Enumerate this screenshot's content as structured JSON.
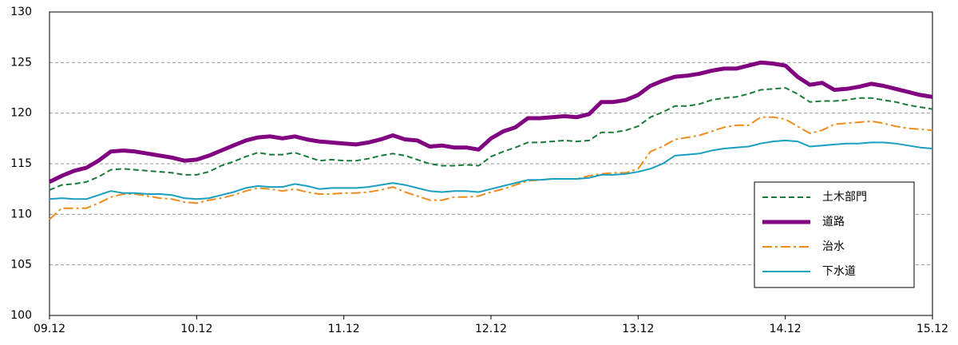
{
  "chart_data": {
    "type": "line",
    "categories": [
      "09.12",
      null,
      null,
      null,
      null,
      null,
      null,
      null,
      null,
      null,
      null,
      null,
      "10.12",
      null,
      null,
      null,
      null,
      null,
      null,
      null,
      null,
      null,
      null,
      null,
      "11.12",
      null,
      null,
      null,
      null,
      null,
      null,
      null,
      null,
      null,
      null,
      null,
      "12.12",
      null,
      null,
      null,
      null,
      null,
      null,
      null,
      null,
      null,
      null,
      null,
      "13.12",
      null,
      null,
      null,
      null,
      null,
      null,
      null,
      null,
      null,
      null,
      null,
      "14.12",
      null,
      null,
      null,
      null,
      null,
      null,
      null,
      null,
      null,
      null,
      null,
      "15.12"
    ],
    "series": [
      {
        "name": "土木部門",
        "color": "#1a7a3a",
        "line_style": "dashed",
        "line_width": 2,
        "values": [
          112.4,
          112.9,
          113.0,
          113.2,
          113.7,
          114.4,
          114.5,
          114.4,
          114.3,
          114.2,
          114.1,
          113.9,
          113.9,
          114.2,
          114.8,
          115.2,
          115.7,
          116.1,
          115.9,
          115.9,
          116.1,
          115.7,
          115.3,
          115.4,
          115.3,
          115.3,
          115.5,
          115.8,
          116.0,
          115.8,
          115.4,
          115.0,
          114.8,
          114.8,
          114.9,
          114.8,
          115.7,
          116.2,
          116.6,
          117.1,
          117.1,
          117.2,
          117.3,
          117.2,
          117.3,
          118.1,
          118.1,
          118.3,
          118.7,
          119.6,
          120.1,
          120.7,
          120.7,
          120.9,
          121.3,
          121.5,
          121.6,
          121.9,
          122.3,
          122.4,
          122.5,
          121.9,
          121.1,
          121.2,
          121.2,
          121.3,
          121.5,
          121.5,
          121.3,
          121.1,
          120.8,
          120.6,
          120.4
        ]
      },
      {
        "name": "道路",
        "color": "#800080",
        "line_style": "solid",
        "line_width": 5,
        "values": [
          113.2,
          113.8,
          114.3,
          114.6,
          115.3,
          116.2,
          116.3,
          116.2,
          116.0,
          115.8,
          115.6,
          115.3,
          115.4,
          115.8,
          116.3,
          116.8,
          117.3,
          117.6,
          117.7,
          117.5,
          117.7,
          117.4,
          117.2,
          117.1,
          117.0,
          116.9,
          117.1,
          117.4,
          117.8,
          117.4,
          117.3,
          116.7,
          116.8,
          116.6,
          116.6,
          116.4,
          117.5,
          118.2,
          118.6,
          119.5,
          119.5,
          119.6,
          119.7,
          119.6,
          119.9,
          121.1,
          121.1,
          121.3,
          121.8,
          122.7,
          123.2,
          123.6,
          123.7,
          123.9,
          124.2,
          124.4,
          124.4,
          124.7,
          125.0,
          124.9,
          124.7,
          123.6,
          122.8,
          123.0,
          122.3,
          122.4,
          122.6,
          122.9,
          122.7,
          122.4,
          122.1,
          121.8,
          121.6
        ]
      },
      {
        "name": "治水",
        "color": "#f08c1e",
        "line_style": "dashdot",
        "line_width": 2,
        "values": [
          109.5,
          110.6,
          110.6,
          110.6,
          111.1,
          111.7,
          112.0,
          112.0,
          111.8,
          111.6,
          111.5,
          111.2,
          111.1,
          111.4,
          111.6,
          111.9,
          112.3,
          112.6,
          112.5,
          112.3,
          112.5,
          112.2,
          112.0,
          112.0,
          112.1,
          112.1,
          112.2,
          112.4,
          112.7,
          112.2,
          111.8,
          111.4,
          111.4,
          111.7,
          111.7,
          111.8,
          112.2,
          112.5,
          112.9,
          113.3,
          113.4,
          113.5,
          113.5,
          113.5,
          113.8,
          114.0,
          114.1,
          114.1,
          114.5,
          116.2,
          116.7,
          117.4,
          117.6,
          117.8,
          118.2,
          118.6,
          118.8,
          118.8,
          119.6,
          119.6,
          119.4,
          118.7,
          118.0,
          118.3,
          118.9,
          119.0,
          119.1,
          119.2,
          119.0,
          118.7,
          118.5,
          118.4,
          118.3
        ]
      },
      {
        "name": "下水道",
        "color": "#1a9fc0",
        "line_style": "solid",
        "line_width": 2,
        "values": [
          111.5,
          111.6,
          111.5,
          111.5,
          111.9,
          112.3,
          112.1,
          112.1,
          112.0,
          112.0,
          111.9,
          111.6,
          111.5,
          111.6,
          111.9,
          112.2,
          112.6,
          112.8,
          112.7,
          112.7,
          113.0,
          112.8,
          112.5,
          112.6,
          112.6,
          112.6,
          112.7,
          112.9,
          113.1,
          112.9,
          112.6,
          112.3,
          112.2,
          112.3,
          112.3,
          112.2,
          112.5,
          112.8,
          113.1,
          113.4,
          113.4,
          113.5,
          113.5,
          113.5,
          113.6,
          113.9,
          113.9,
          114.0,
          114.2,
          114.5,
          115.0,
          115.8,
          115.9,
          116.0,
          116.3,
          116.5,
          116.6,
          116.7,
          117.0,
          117.2,
          117.3,
          117.2,
          116.7,
          116.8,
          116.9,
          117.0,
          117.0,
          117.1,
          117.1,
          117.0,
          116.8,
          116.6,
          116.5
        ]
      }
    ],
    "ylim": [
      100,
      130
    ],
    "yticks": [
      100,
      105,
      110,
      115,
      120,
      125,
      130
    ],
    "grid": true,
    "legend": "lower right"
  }
}
